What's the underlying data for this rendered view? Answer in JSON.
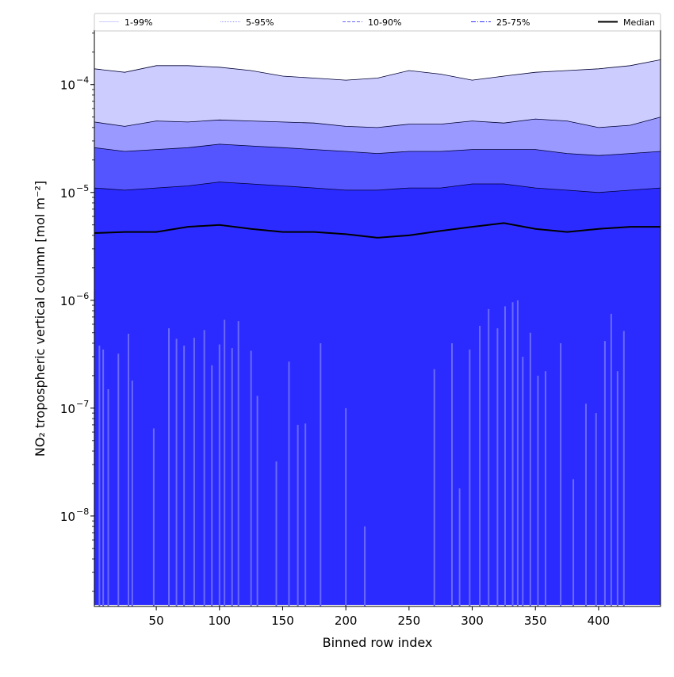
{
  "chart_data": {
    "type": "area",
    "xlabel": "Binned row index",
    "ylabel": "NO₂ tropospheric vertical column [mol m⁻²]",
    "yscale": "log",
    "xlim": [
      1,
      449
    ],
    "ylim": [
      1.45e-09,
      0.00032
    ],
    "x_ticks": [
      {
        "value": 50,
        "label": "50"
      },
      {
        "value": 100,
        "label": "100"
      },
      {
        "value": 150,
        "label": "150"
      },
      {
        "value": 200,
        "label": "200"
      },
      {
        "value": 250,
        "label": "250"
      },
      {
        "value": 300,
        "label": "300"
      },
      {
        "value": 350,
        "label": "350"
      },
      {
        "value": 400,
        "label": "400"
      }
    ],
    "y_ticks": [
      {
        "value": 1e-08,
        "label": "10",
        "exp": "−8"
      },
      {
        "value": 1e-07,
        "label": "10",
        "exp": "−7"
      },
      {
        "value": 1e-06,
        "label": "10",
        "exp": "−6"
      },
      {
        "value": 1e-05,
        "label": "10",
        "exp": "−5"
      },
      {
        "value": 0.0001,
        "label": "10",
        "exp": "−4"
      }
    ],
    "legend_position": "top",
    "legend": [
      {
        "label": "1-99%",
        "color": "#ccccff",
        "dash": "solid"
      },
      {
        "label": "5-95%",
        "color": "#9999ff",
        "dash": "1,1"
      },
      {
        "label": "10-90%",
        "color": "#6666ff",
        "dash": "4,2"
      },
      {
        "label": "25-75%",
        "color": "#3333ff",
        "dash": "6,2,1,2"
      },
      {
        "label": "Median",
        "color": "#000000",
        "dash": "solid"
      }
    ],
    "x": [
      1,
      25,
      50,
      75,
      100,
      125,
      150,
      175,
      200,
      225,
      250,
      275,
      300,
      325,
      350,
      375,
      400,
      425,
      449
    ],
    "bands": [
      {
        "name": "1-99%",
        "color": "#ccccff",
        "upper": [
          0.00014,
          0.00013,
          0.00015,
          0.00015,
          0.000145,
          0.000135,
          0.00012,
          0.000115,
          0.00011,
          0.000115,
          0.000135,
          0.000125,
          0.00011,
          0.00012,
          0.00013,
          0.000135,
          0.00014,
          0.00015,
          0.00017
        ],
        "lower": [
          1.5e-09,
          1.5e-09,
          1.5e-09,
          1.5e-09,
          1.5e-09,
          1.5e-09,
          1.5e-09,
          1.5e-09,
          1.5e-09,
          1.5e-09,
          1.5e-09,
          1.5e-09,
          1.5e-09,
          1.5e-09,
          1.5e-09,
          1.5e-09,
          1.5e-09,
          1.5e-09,
          1.5e-09
        ]
      },
      {
        "name": "5-95%",
        "color": "#9999ff",
        "upper": [
          4.5e-05,
          4.1e-05,
          4.6e-05,
          4.5e-05,
          4.7e-05,
          4.6e-05,
          4.5e-05,
          4.4e-05,
          4.1e-05,
          4e-05,
          4.3e-05,
          4.3e-05,
          4.6e-05,
          4.4e-05,
          4.8e-05,
          4.6e-05,
          4e-05,
          4.2e-05,
          5e-05
        ],
        "lower": [
          1.5e-09,
          1.5e-09,
          1.5e-09,
          1.5e-09,
          1.5e-09,
          1.5e-09,
          1.5e-09,
          1.5e-09,
          1.5e-09,
          1.5e-09,
          1.5e-09,
          1.5e-09,
          1.5e-09,
          1.5e-09,
          1.5e-09,
          1.5e-09,
          1.5e-09,
          1.5e-09,
          1.5e-09
        ]
      },
      {
        "name": "10-90%",
        "color": "#5555ff",
        "upper": [
          2.6e-05,
          2.4e-05,
          2.5e-05,
          2.6e-05,
          2.8e-05,
          2.7e-05,
          2.6e-05,
          2.5e-05,
          2.4e-05,
          2.3e-05,
          2.4e-05,
          2.4e-05,
          2.5e-05,
          2.5e-05,
          2.5e-05,
          2.3e-05,
          2.2e-05,
          2.3e-05,
          2.4e-05
        ],
        "lower": [
          1.5e-09,
          1.5e-09,
          1.5e-09,
          1.5e-09,
          1.5e-09,
          1.5e-09,
          1.5e-09,
          1.5e-09,
          1.5e-09,
          1.5e-09,
          1.5e-09,
          1.5e-09,
          1.5e-09,
          1.5e-09,
          1.5e-09,
          1.5e-09,
          1.5e-09,
          1.5e-09,
          1.5e-09
        ]
      },
      {
        "name": "25-75%",
        "color": "#2b2bff",
        "upper": [
          1.1e-05,
          1.05e-05,
          1.1e-05,
          1.15e-05,
          1.25e-05,
          1.2e-05,
          1.15e-05,
          1.1e-05,
          1.05e-05,
          1.05e-05,
          1.1e-05,
          1.1e-05,
          1.2e-05,
          1.2e-05,
          1.1e-05,
          1.05e-05,
          1e-05,
          1.05e-05,
          1.1e-05
        ],
        "lower": [
          1.5e-09,
          1.5e-09,
          1.5e-09,
          1.5e-09,
          1.5e-09,
          1.5e-09,
          1.5e-09,
          1.5e-09,
          1.5e-09,
          1.5e-09,
          1.5e-09,
          1.5e-09,
          1.5e-09,
          1.5e-09,
          1.5e-09,
          1.5e-09,
          1.5e-09,
          1.5e-09,
          1.5e-09
        ]
      }
    ],
    "median": {
      "name": "Median",
      "color": "#000000",
      "values": [
        4.2e-06,
        4.3e-06,
        4.3e-06,
        4.8e-06,
        5e-06,
        4.6e-06,
        4.3e-06,
        4.3e-06,
        4.1e-06,
        3.8e-06,
        4e-06,
        4.4e-06,
        4.8e-06,
        5.2e-06,
        4.6e-06,
        4.3e-06,
        4.6e-06,
        4.8e-06,
        4.8e-06
      ]
    },
    "lower_spikes": {
      "color": "#6a6aff",
      "x": [
        5,
        8,
        12,
        20,
        28,
        31,
        48,
        60,
        66,
        72,
        80,
        88,
        94,
        100,
        104,
        110,
        115,
        125,
        130,
        145,
        155,
        162,
        168,
        180,
        200,
        215,
        270,
        284,
        290,
        298,
        306,
        313,
        320,
        326,
        332,
        336,
        340,
        346,
        352,
        358,
        370,
        380,
        390,
        398,
        405,
        410,
        415,
        420
      ],
      "values": [
        3.8e-07,
        3.5e-07,
        1.5e-07,
        3.2e-07,
        4.9e-07,
        1.8e-07,
        6.5e-08,
        5.5e-07,
        4.4e-07,
        3.8e-07,
        4.5e-07,
        5.3e-07,
        2.5e-07,
        3.9e-07,
        6.6e-07,
        3.6e-07,
        6.4e-07,
        3.4e-07,
        1.3e-07,
        3.2e-08,
        2.7e-07,
        7e-08,
        7.2e-08,
        4e-07,
        1e-07,
        8e-09,
        2.3e-07,
        4e-07,
        1.8e-08,
        3.5e-07,
        5.8e-07,
        8.3e-07,
        5.5e-07,
        8.8e-07,
        9.6e-07,
        1e-06,
        3e-07,
        5e-07,
        2e-07,
        2.2e-07,
        4e-07,
        2.2e-08,
        1.1e-07,
        9e-08,
        4.2e-07,
        7.5e-07,
        2.2e-07,
        5.2e-07
      ]
    }
  }
}
